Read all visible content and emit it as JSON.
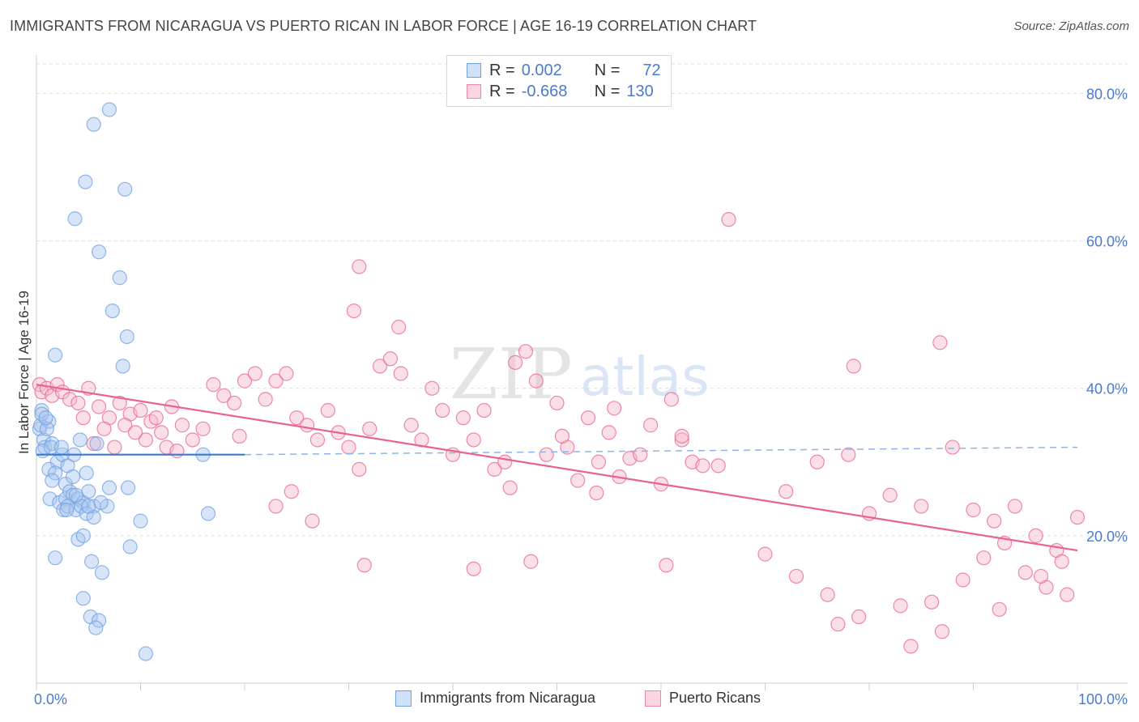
{
  "title": "IMMIGRANTS FROM NICARAGUA VS PUERTO RICAN IN LABOR FORCE | AGE 16-19 CORRELATION CHART",
  "source": "Source: ZipAtlas.com",
  "watermark": {
    "zip": "ZIP",
    "atlas": "atlas"
  },
  "legend": {
    "rows": [
      {
        "r_label": "R =",
        "r_value": "0.002",
        "n_label": "N =",
        "n_value": "72",
        "color": "#a8c6f0",
        "border": "#6fa0e0"
      },
      {
        "r_label": "R =",
        "r_value": "-0.668",
        "n_label": "N =",
        "n_value": "130",
        "color": "#f6b8cc",
        "border": "#e88aa8"
      }
    ]
  },
  "bottom_legend": [
    {
      "label": "Immigrants from Nicaragua",
      "color": "#a8c6f0",
      "border": "#6fa0e0"
    },
    {
      "label": "Puerto Ricans",
      "color": "#f6b8cc",
      "border": "#e88aa8"
    }
  ],
  "chart_data": {
    "type": "scatter",
    "title": "IMMIGRANTS FROM NICARAGUA VS PUERTO RICAN IN LABOR FORCE | AGE 16-19 CORRELATION CHART",
    "xlabel": "",
    "ylabel": "In Labor Force | Age 16-19",
    "xlim": [
      0,
      100
    ],
    "ylim": [
      0,
      84
    ],
    "x_tick_labels": [
      "0.0%",
      "100.0%"
    ],
    "y_ticks": [
      20,
      40,
      60,
      80
    ],
    "y_tick_labels": [
      "20.0%",
      "40.0%",
      "60.0%",
      "80.0%"
    ],
    "grid": true,
    "series": [
      {
        "name": "Immigrants from Nicaragua",
        "color": "#6fa0e0",
        "fill": "#a8c6f0",
        "trend": {
          "x0": 0,
          "y0": 31.0,
          "x1": 20,
          "y1": 31.0,
          "dash_x1": 100,
          "dash_y1": 32.0
        },
        "points": [
          [
            0.5,
            37
          ],
          [
            0.3,
            34.5
          ],
          [
            0.7,
            33
          ],
          [
            1.2,
            35.5
          ],
          [
            0.8,
            32
          ],
          [
            1.5,
            32.5
          ],
          [
            0.4,
            35
          ],
          [
            1.0,
            34.5
          ],
          [
            0.6,
            31.5
          ],
          [
            2.0,
            30
          ],
          [
            1.2,
            29
          ],
          [
            1.8,
            28.5
          ],
          [
            2.5,
            31
          ],
          [
            3.0,
            29.5
          ],
          [
            1.5,
            27.5
          ],
          [
            2.8,
            27
          ],
          [
            3.5,
            28
          ],
          [
            4.8,
            28.5
          ],
          [
            1.3,
            25
          ],
          [
            2.2,
            24.5
          ],
          [
            2.8,
            25
          ],
          [
            3.2,
            26
          ],
          [
            3.5,
            25.5
          ],
          [
            4.0,
            25
          ],
          [
            4.5,
            24.5
          ],
          [
            5.0,
            26
          ],
          [
            5.5,
            24
          ],
          [
            2.6,
            23.5
          ],
          [
            3.0,
            24
          ],
          [
            3.8,
            23.5
          ],
          [
            4.3,
            24
          ],
          [
            4.8,
            23
          ],
          [
            5.5,
            22.5
          ],
          [
            6.8,
            24
          ],
          [
            3.6,
            31
          ],
          [
            4.2,
            33
          ],
          [
            5.8,
            32.5
          ],
          [
            7.0,
            26.5
          ],
          [
            8.8,
            26.5
          ],
          [
            9.0,
            18.5
          ],
          [
            10.0,
            22
          ],
          [
            4.0,
            19.5
          ],
          [
            4.5,
            20
          ],
          [
            1.8,
            17
          ],
          [
            5.3,
            16.5
          ],
          [
            6.3,
            15
          ],
          [
            4.5,
            11.5
          ],
          [
            5.2,
            9
          ],
          [
            6.0,
            8.5
          ],
          [
            5.7,
            7.5
          ],
          [
            10.5,
            4
          ],
          [
            8.3,
            43
          ],
          [
            8.7,
            47
          ],
          [
            7.3,
            50.5
          ],
          [
            8.0,
            55
          ],
          [
            6.0,
            58.5
          ],
          [
            3.7,
            63
          ],
          [
            4.7,
            68
          ],
          [
            8.5,
            67
          ],
          [
            5.5,
            75.8
          ],
          [
            7.0,
            77.8
          ],
          [
            1.8,
            44.5
          ],
          [
            16.0,
            31
          ],
          [
            16.5,
            23
          ],
          [
            0.5,
            36.5
          ],
          [
            0.9,
            36
          ],
          [
            1.4,
            32
          ],
          [
            2.4,
            32
          ],
          [
            3.8,
            25.5
          ],
          [
            5.0,
            24
          ],
          [
            6.2,
            24.5
          ],
          [
            2.9,
            23.5
          ]
        ]
      },
      {
        "name": "Puerto Ricans",
        "color": "#e8638e",
        "fill": "#f6b8cc",
        "trend": {
          "x0": 0,
          "y0": 40.5,
          "x1": 100,
          "y1": 18.0
        },
        "points": [
          [
            0.3,
            40.5
          ],
          [
            0.5,
            39.5
          ],
          [
            1.0,
            40
          ],
          [
            1.5,
            39
          ],
          [
            2.0,
            40.5
          ],
          [
            2.5,
            39.5
          ],
          [
            3.2,
            38.5
          ],
          [
            4.0,
            38
          ],
          [
            5.0,
            40
          ],
          [
            6.0,
            37.5
          ],
          [
            7.0,
            36
          ],
          [
            8.0,
            38
          ],
          [
            9.0,
            36.5
          ],
          [
            10.0,
            37
          ],
          [
            11.0,
            35.5
          ],
          [
            12.0,
            34
          ],
          [
            13.0,
            37.5
          ],
          [
            14.0,
            35
          ],
          [
            15.0,
            33
          ],
          [
            16.0,
            34.5
          ],
          [
            4.5,
            36
          ],
          [
            6.5,
            34.5
          ],
          [
            8.5,
            35
          ],
          [
            10.5,
            33
          ],
          [
            12.5,
            32
          ],
          [
            5.5,
            32.5
          ],
          [
            7.5,
            32
          ],
          [
            9.5,
            34
          ],
          [
            11.5,
            36
          ],
          [
            13.5,
            31.5
          ],
          [
            17.0,
            40.5
          ],
          [
            18.0,
            39
          ],
          [
            19.0,
            38
          ],
          [
            20.0,
            41
          ],
          [
            21.0,
            42
          ],
          [
            22.0,
            38.5
          ],
          [
            23.0,
            41
          ],
          [
            24.0,
            42
          ],
          [
            25.0,
            36
          ],
          [
            26.0,
            35
          ],
          [
            27.0,
            33
          ],
          [
            28.0,
            37
          ],
          [
            29.0,
            34
          ],
          [
            30.0,
            32
          ],
          [
            31.0,
            29
          ],
          [
            32.0,
            34.5
          ],
          [
            33.0,
            43
          ],
          [
            34.0,
            44
          ],
          [
            35.0,
            42
          ],
          [
            36.0,
            35
          ],
          [
            37.0,
            33
          ],
          [
            38.0,
            40
          ],
          [
            39.0,
            37
          ],
          [
            40.0,
            31
          ],
          [
            41.0,
            36
          ],
          [
            42.0,
            33
          ],
          [
            43.0,
            37
          ],
          [
            44.0,
            29
          ],
          [
            45.0,
            30
          ],
          [
            46.0,
            43.5
          ],
          [
            47.0,
            45
          ],
          [
            48.0,
            41
          ],
          [
            49.0,
            31
          ],
          [
            50.0,
            38
          ],
          [
            51.0,
            32
          ],
          [
            52.0,
            27.5
          ],
          [
            53.0,
            36
          ],
          [
            54.0,
            30
          ],
          [
            55.0,
            34
          ],
          [
            56.0,
            28
          ],
          [
            57.0,
            30.5
          ],
          [
            58.0,
            31
          ],
          [
            59.0,
            35
          ],
          [
            60.0,
            27
          ],
          [
            61.0,
            38.5
          ],
          [
            62.0,
            33
          ],
          [
            63.0,
            30
          ],
          [
            64.0,
            29.5
          ],
          [
            30.5,
            50.5
          ],
          [
            34.8,
            48.3
          ],
          [
            31.0,
            56.5
          ],
          [
            66.5,
            62.9
          ],
          [
            55.5,
            37.3
          ],
          [
            62.0,
            33.5
          ],
          [
            19.5,
            33.5
          ],
          [
            24.5,
            26
          ],
          [
            45.5,
            26.5
          ],
          [
            53.8,
            25.8
          ],
          [
            72.0,
            26
          ],
          [
            75.0,
            30
          ],
          [
            78.0,
            31
          ],
          [
            80.0,
            23
          ],
          [
            82.0,
            25.5
          ],
          [
            85.0,
            24
          ],
          [
            88.0,
            32
          ],
          [
            90.0,
            23.5
          ],
          [
            92.0,
            22
          ],
          [
            94.0,
            24
          ],
          [
            96.0,
            20
          ],
          [
            98.0,
            18
          ],
          [
            100.0,
            22.5
          ],
          [
            70.0,
            17.5
          ],
          [
            73.0,
            14.5
          ],
          [
            76.0,
            12
          ],
          [
            79.0,
            9
          ],
          [
            83.0,
            10.5
          ],
          [
            86.0,
            11
          ],
          [
            89.0,
            14
          ],
          [
            91.0,
            17
          ],
          [
            93.0,
            19
          ],
          [
            95.0,
            15
          ],
          [
            97.0,
            13
          ],
          [
            99.0,
            12
          ],
          [
            77.0,
            8
          ],
          [
            84.0,
            5
          ],
          [
            87.0,
            7
          ],
          [
            92.5,
            10
          ],
          [
            96.5,
            14.5
          ],
          [
            98.5,
            16.5
          ],
          [
            60.5,
            16
          ],
          [
            42.0,
            15.5
          ],
          [
            47.5,
            16.5
          ],
          [
            31.5,
            16
          ],
          [
            23.0,
            24
          ],
          [
            26.5,
            22
          ],
          [
            50.5,
            33.5
          ],
          [
            86.8,
            46.2
          ],
          [
            78.5,
            43
          ],
          [
            65.5,
            29.5
          ]
        ]
      }
    ]
  }
}
